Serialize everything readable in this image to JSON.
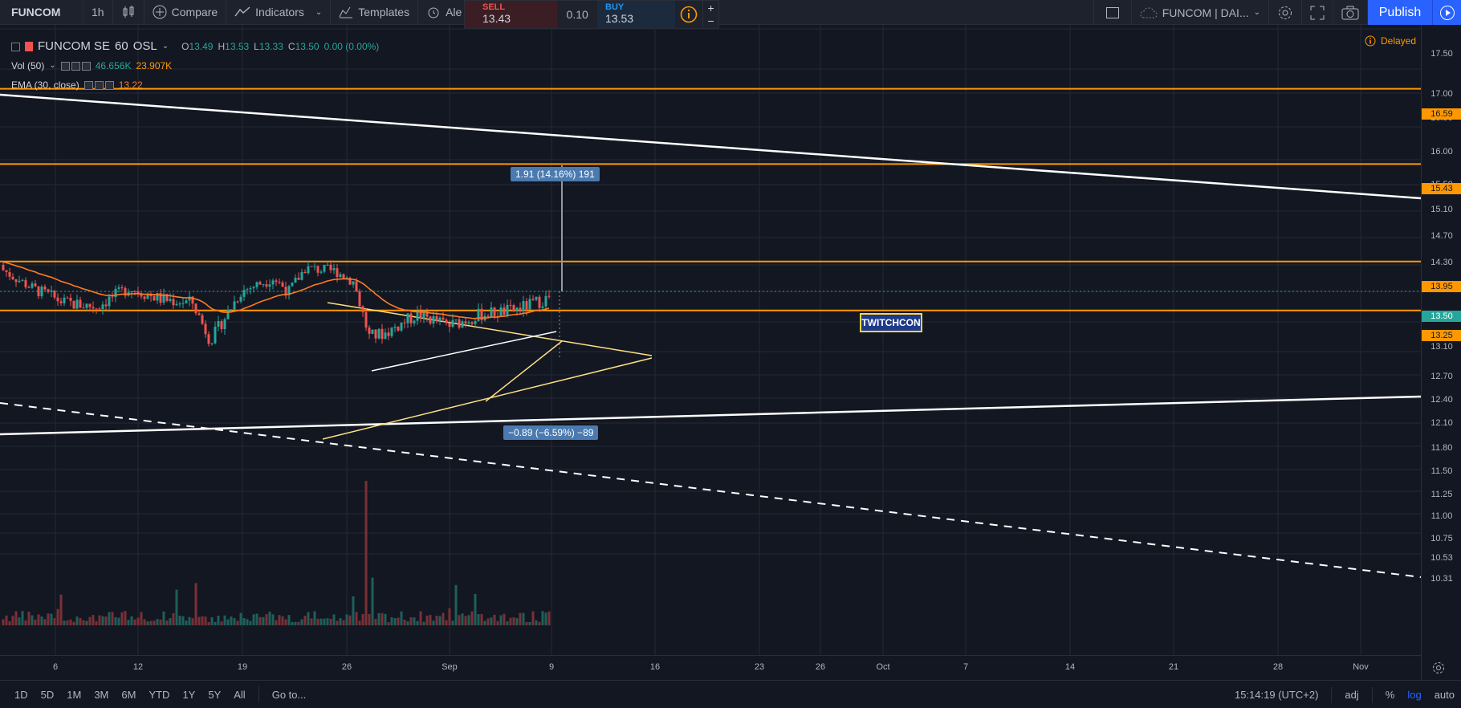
{
  "toolbar": {
    "symbol": "FUNCOM",
    "interval": "1h",
    "compare": "Compare",
    "indicators": "Indicators",
    "templates": "Templates",
    "alert": "Ale",
    "layout_name": "FUNCOM | DAI...",
    "publish": "Publish"
  },
  "trade": {
    "sell_label": "SELL",
    "sell_price": "13.43",
    "spread": "0.10",
    "buy_label": "BUY",
    "buy_price": "13.53",
    "plus": "+",
    "minus": "−"
  },
  "legend": {
    "symbol": "FUNCOM SE",
    "interval": "60",
    "exchange": "OSL",
    "o_key": "O",
    "o": "13.49",
    "h_key": "H",
    "h": "13.53",
    "l_key": "L",
    "l": "13.33",
    "c_key": "C",
    "c": "13.50",
    "change": "0.00 (0.00%)",
    "vol_label": "Vol (50)",
    "vol_value": "46.656K",
    "vol_ma": "23.907K",
    "ema_label": "EMA (30, close)",
    "ema_value": "13.22",
    "delayed": "Delayed"
  },
  "price_scale": {
    "ticks": [
      "17.50",
      "17.00",
      "16.50",
      "16.00",
      "15.50",
      "15.10",
      "14.70",
      "14.30",
      "13.90",
      "13.50",
      "13.10",
      "12.70",
      "12.40",
      "12.10",
      "11.80",
      "11.50",
      "11.25",
      "11.00",
      "10.75",
      "10.53",
      "10.31"
    ],
    "badges": [
      {
        "value": "16.59",
        "color": "#ff9800"
      },
      {
        "value": "15.43",
        "color": "#ff9800"
      },
      {
        "value": "13.95",
        "color": "#ff9800"
      },
      {
        "value": "13.50",
        "color": "#26a69a"
      },
      {
        "value": "13.25",
        "color": "#ff9800"
      }
    ]
  },
  "time_axis": [
    "6",
    "12",
    "19",
    "26",
    "Sep",
    "9",
    "16",
    "23",
    "26",
    "Oct",
    "7",
    "14",
    "21",
    "28",
    "Nov"
  ],
  "measure": {
    "up_label": "1.91 (14.16%) 191",
    "down_label": "−0.89 (−6.59%) −89"
  },
  "annotation": "TWITCHCON",
  "bottom": {
    "ranges": [
      "1D",
      "5D",
      "1M",
      "3M",
      "6M",
      "YTD",
      "1Y",
      "5Y",
      "All"
    ],
    "goto": "Go to...",
    "time": "15:14:19 (UTC+2)",
    "adj": "adj",
    "pct": "%",
    "log": "log",
    "auto": "auto"
  },
  "colors": {
    "up": "#26a69a",
    "down": "#ef5350",
    "ema": "#ff7b22",
    "hline": "#ff9800",
    "accent": "#2962ff"
  },
  "chart_data": {
    "type": "candlestick",
    "symbol": "FUNCOM SE",
    "interval": "60",
    "horizontal_levels": [
      16.59,
      15.43,
      13.95,
      13.5,
      13.25
    ],
    "last_price": 13.5,
    "ema_last": 13.22,
    "measure_up": {
      "change": 1.91,
      "percent": 14.16,
      "bars": 191
    },
    "measure_down": {
      "change": -0.89,
      "percent": -6.59,
      "bars": -89
    }
  }
}
